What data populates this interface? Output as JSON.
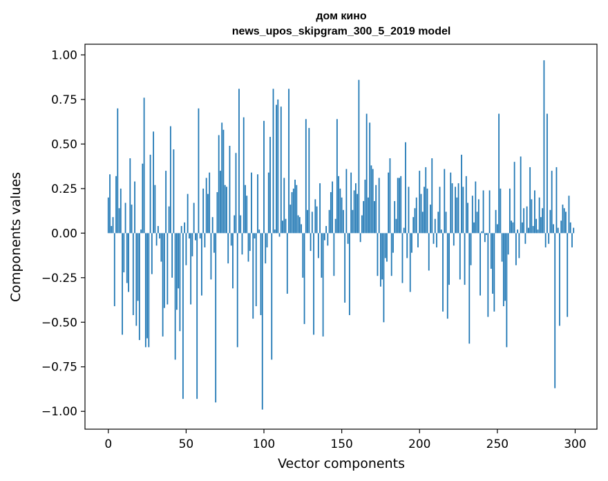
{
  "chart_data": {
    "type": "bar",
    "title": "дом кино",
    "subtitle": "news_upos_skipgram_300_5_2019 model",
    "xlabel": "Vector components",
    "ylabel": "Components values",
    "xlim": [
      -15,
      314
    ],
    "ylim": [
      -1.1,
      1.06
    ],
    "x_ticks": [
      0,
      50,
      100,
      150,
      200,
      250,
      300
    ],
    "x_tick_labels": [
      "0",
      "50",
      "100",
      "150",
      "200",
      "250",
      "300"
    ],
    "y_ticks": [
      1.0,
      0.75,
      0.5,
      0.25,
      0.0,
      -0.25,
      -0.5,
      -0.75,
      -1.0
    ],
    "y_tick_labels": [
      "1.00",
      "0.75",
      "0.50",
      "0.25",
      "0.00",
      "−0.25",
      "−0.50",
      "−0.75",
      "−1.00"
    ],
    "grid": false,
    "bar_color": "#1f77b4",
    "values": [
      0.2,
      0.33,
      0.04,
      0.09,
      -0.41,
      0.32,
      0.7,
      0.14,
      0.25,
      -0.57,
      -0.22,
      0.17,
      -0.28,
      -0.33,
      0.42,
      0.16,
      -0.46,
      0.29,
      -0.52,
      -0.38,
      -0.6,
      0.02,
      0.39,
      0.76,
      -0.64,
      -0.59,
      -0.64,
      0.44,
      -0.23,
      0.57,
      0.27,
      -0.07,
      0.04,
      -0.03,
      -0.16,
      -0.58,
      -0.42,
      0.35,
      -0.4,
      0.15,
      0.6,
      -0.25,
      0.47,
      -0.71,
      -0.43,
      -0.31,
      -0.55,
      0.04,
      -0.93,
      0.06,
      -0.18,
      0.22,
      -0.03,
      -0.4,
      -0.13,
      0.17,
      -0.04,
      -0.93,
      0.7,
      -0.03,
      -0.35,
      0.25,
      -0.08,
      0.31,
      0.22,
      0.34,
      -0.26,
      0.09,
      -0.11,
      -0.95,
      0.23,
      0.55,
      0.35,
      0.62,
      0.58,
      0.27,
      0.26,
      -0.17,
      0.49,
      -0.07,
      -0.31,
      0.1,
      0.45,
      -0.64,
      0.81,
      0.1,
      -0.12,
      0.65,
      0.27,
      0.21,
      -0.16,
      -0.1,
      0.34,
      -0.48,
      -0.03,
      -0.41,
      0.33,
      0.02,
      -0.46,
      -0.99,
      0.63,
      -0.17,
      -0.08,
      0.34,
      0.54,
      -0.71,
      0.81,
      0.02,
      0.72,
      0.75,
      -0.02,
      0.71,
      0.07,
      0.31,
      0.08,
      -0.34,
      0.81,
      0.16,
      0.23,
      0.25,
      0.3,
      0.27,
      0.1,
      0.09,
      0.05,
      -0.25,
      -0.51,
      0.64,
      0.13,
      0.59,
      -0.1,
      0.12,
      -0.57,
      0.19,
      0.15,
      -0.14,
      0.28,
      -0.25,
      -0.58,
      -0.04,
      0.04,
      -0.07,
      0.13,
      0.23,
      0.29,
      -0.24,
      0.08,
      0.64,
      0.32,
      0.25,
      0.2,
      0.13,
      -0.39,
      0.36,
      -0.06,
      -0.46,
      0.34,
      0.13,
      0.24,
      0.28,
      0.22,
      0.86,
      -0.05,
      0.1,
      0.18,
      0.3,
      0.67,
      0.2,
      0.62,
      0.38,
      0.36,
      0.18,
      0.27,
      -0.24,
      0.31,
      -0.3,
      -0.26,
      -0.5,
      -0.14,
      -0.16,
      0.34,
      0.42,
      -0.24,
      -0.11,
      0.18,
      0.08,
      0.31,
      0.31,
      0.32,
      -0.28,
      0.03,
      0.51,
      -0.14,
      0.26,
      -0.33,
      -0.11,
      0.09,
      0.14,
      0.2,
      -0.08,
      0.35,
      0.22,
      0.12,
      0.26,
      0.37,
      0.25,
      -0.21,
      0.16,
      0.42,
      -0.06,
      0.08,
      -0.08,
      0.12,
      0.26,
      0.02,
      -0.44,
      0.36,
      0.12,
      -0.48,
      -0.29,
      0.34,
      0.28,
      -0.07,
      0.26,
      0.2,
      0.28,
      -0.26,
      0.44,
      0.26,
      -0.29,
      0.32,
      0.17,
      -0.62,
      -0.18,
      0.21,
      0.06,
      0.29,
      0.12,
      0.19,
      -0.35,
      0.01,
      0.24,
      -0.05,
      -0.01,
      -0.47,
      0.24,
      -0.2,
      -0.34,
      -0.44,
      0.13,
      0.05,
      0.67,
      0.25,
      -0.16,
      -0.41,
      -0.38,
      -0.64,
      -0.12,
      0.25,
      0.07,
      0.06,
      0.4,
      -0.18,
      0.02,
      -0.14,
      0.43,
      0.06,
      0.14,
      -0.06,
      0.15,
      0.03,
      0.37,
      0.19,
      0.04,
      0.24,
      0.08,
      0.02,
      0.2,
      0.09,
      0.14,
      0.97,
      -0.08,
      0.67,
      -0.06,
      0.13,
      0.35,
      0.05,
      -0.87,
      0.37,
      0.03,
      -0.52,
      0.07,
      0.16,
      0.14,
      0.12,
      -0.47,
      0.21,
      0.06,
      -0.08,
      0.03
    ]
  }
}
